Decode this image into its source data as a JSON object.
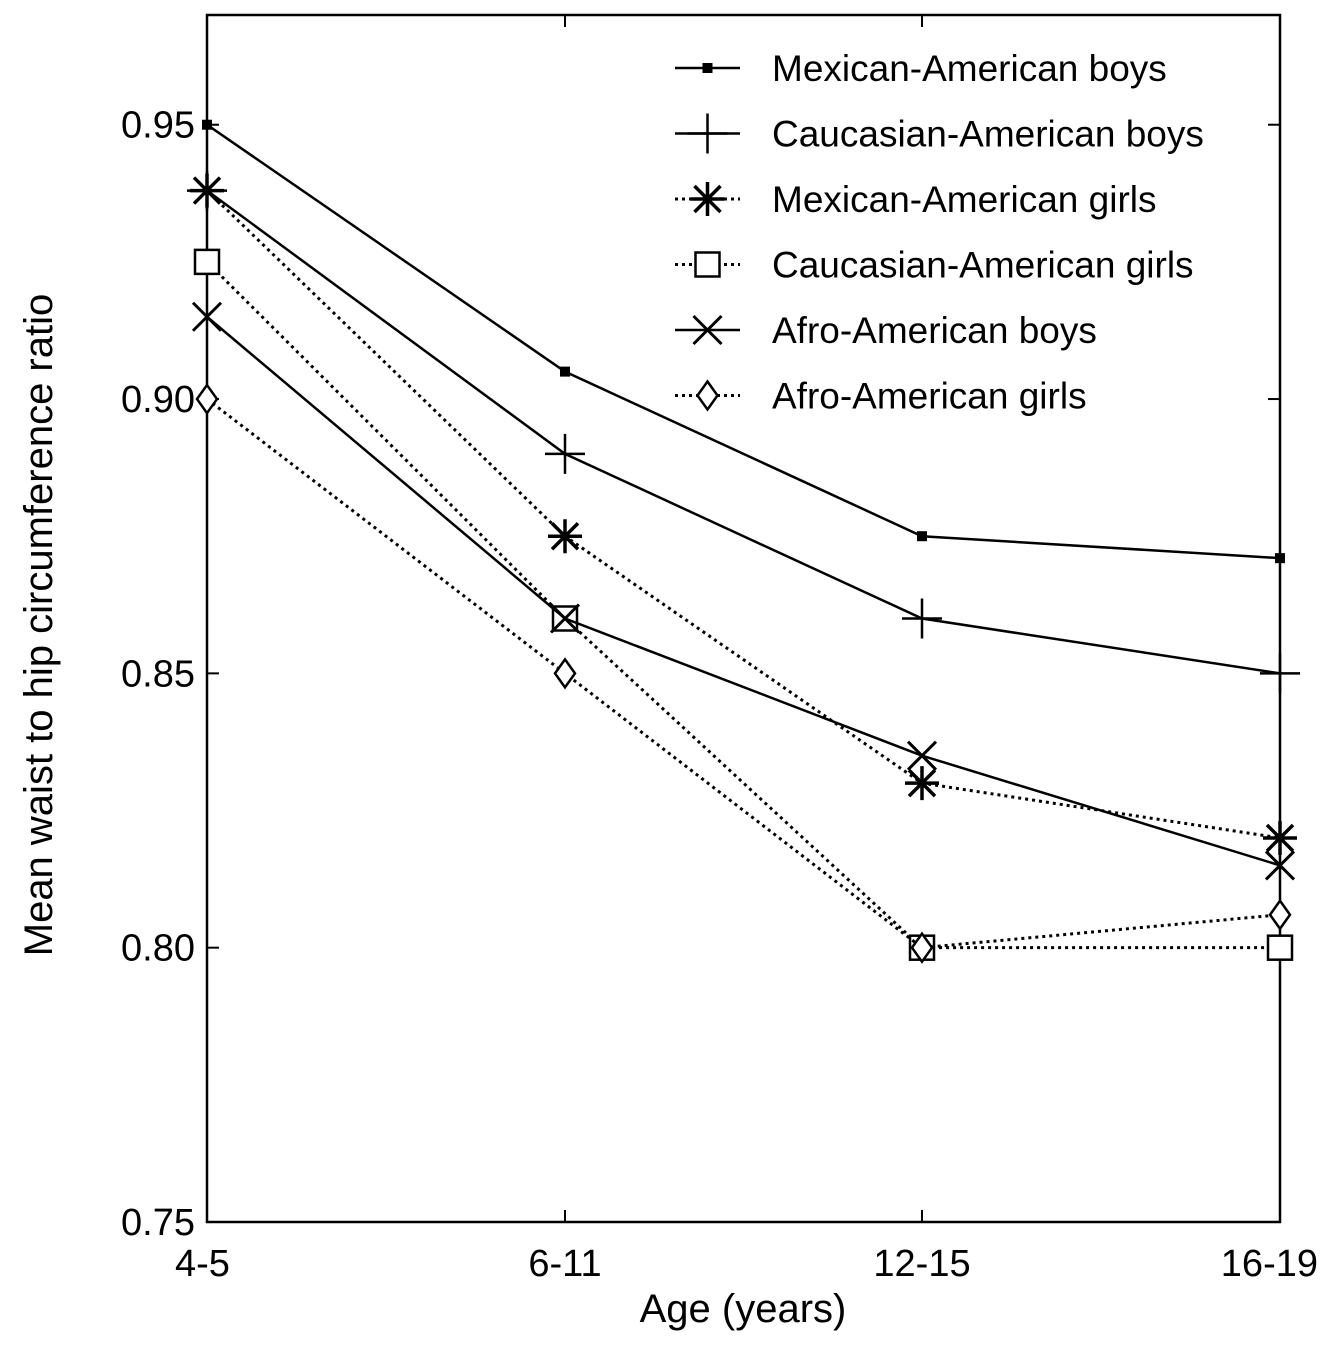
{
  "chart_data": {
    "type": "line",
    "title": "",
    "xlabel": "Age (years)",
    "ylabel": "Mean waist to hip circumference ratio",
    "categories": [
      "4-5",
      "6-11",
      "12-15",
      "16-19"
    ],
    "ylim": [
      0.75,
      0.97
    ],
    "yticks": [
      0.75,
      0.8,
      0.85,
      0.9,
      0.95
    ],
    "ytick_labels": [
      "0.75",
      "0.80",
      "0.85",
      "0.90",
      "0.95"
    ],
    "grid": false,
    "legend_position": "top-right",
    "series": [
      {
        "name": "Mexican-American boys",
        "values": [
          0.95,
          0.905,
          0.875,
          0.871
        ],
        "marker": "filled-square",
        "line": "solid",
        "color": "#000000"
      },
      {
        "name": "Caucasian-American boys",
        "values": [
          0.938,
          0.89,
          0.86,
          0.85
        ],
        "marker": "plus",
        "line": "solid",
        "color": "#000000"
      },
      {
        "name": "Mexican-American girls",
        "values": [
          0.938,
          0.875,
          0.83,
          0.82
        ],
        "marker": "asterisk",
        "line": "dotted",
        "color": "#000000"
      },
      {
        "name": "Caucasian-American girls",
        "values": [
          0.925,
          0.86,
          0.8,
          0.8
        ],
        "marker": "open-square",
        "line": "dotted",
        "color": "#000000"
      },
      {
        "name": "Afro-American boys",
        "values": [
          0.915,
          0.86,
          0.835,
          0.815
        ],
        "marker": "cross",
        "line": "solid",
        "color": "#000000"
      },
      {
        "name": "Afro-American girls",
        "values": [
          0.9,
          0.85,
          0.8,
          0.806
        ],
        "marker": "open-diamond",
        "line": "dotted",
        "color": "#000000"
      }
    ]
  }
}
